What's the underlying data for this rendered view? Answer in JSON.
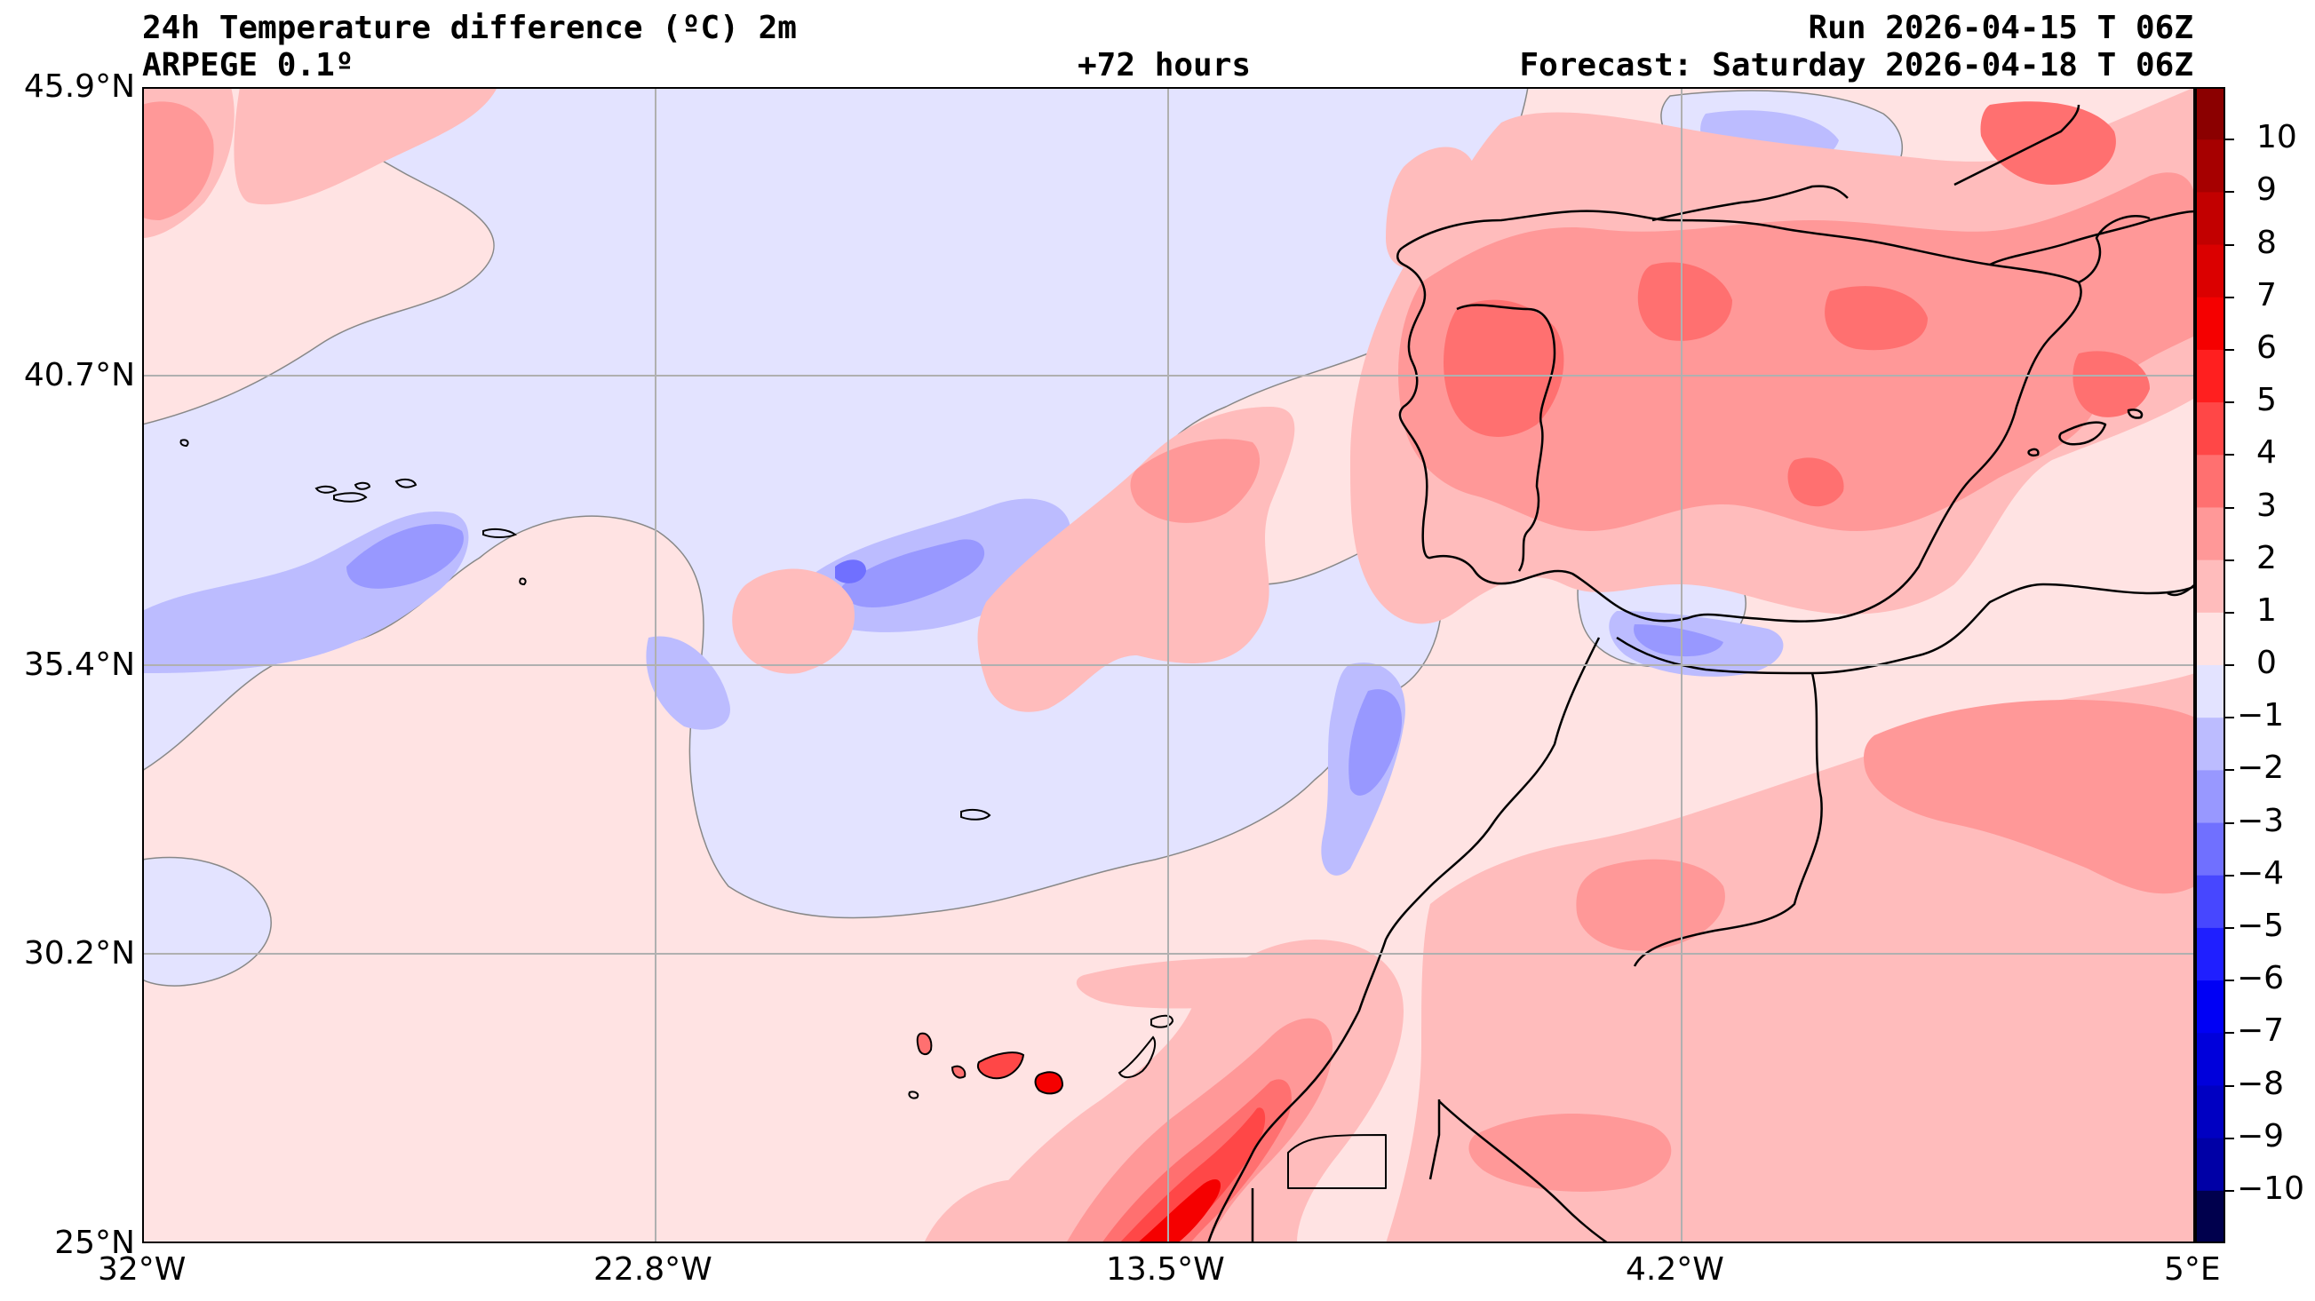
{
  "header": {
    "title": "24h Temperature difference (ºC) 2m",
    "model": "ARPEGE 0.1º",
    "lead": "+72 hours",
    "run": "Run 2026-04-15 T 06Z",
    "forecast": "Forecast: Saturday 2026-04-18 T 06Z"
  },
  "map": {
    "lat_labels": [
      "45.9°N",
      "40.7°N",
      "35.4°N",
      "30.2°N",
      "25°N"
    ],
    "lon_labels": [
      "32°W",
      "22.8°W",
      "13.5°W",
      "4.2°W",
      "5°E"
    ],
    "lat_range": [
      25,
      45.9
    ],
    "lon_range": [
      -32,
      5
    ],
    "grid": true,
    "regions": [
      "Portugal",
      "Spain",
      "France",
      "Morocco",
      "Algeria",
      "Western Sahara",
      "Canary Islands",
      "Madeira",
      "Azores",
      "Balearic Islands"
    ]
  },
  "colorbar": {
    "ticks": [
      "10",
      "9",
      "8",
      "7",
      "6",
      "5",
      "4",
      "3",
      "2",
      "1",
      "0",
      "−1",
      "−2",
      "−3",
      "−4",
      "−5",
      "−6",
      "−7",
      "−8",
      "−9",
      "−10"
    ],
    "colors_warm": [
      "#ffe3e3",
      "#ffbcbc",
      "#ff9898",
      "#ff7070",
      "#ff4747",
      "#ff1f1f",
      "#f50000",
      "#db0000",
      "#c20000",
      "#a60000",
      "#8b0000"
    ],
    "colors_cold": [
      "#e3e3ff",
      "#bcbcff",
      "#9898ff",
      "#7070ff",
      "#4747ff",
      "#1f1fff",
      "#0000f5",
      "#0000db",
      "#0000c2",
      "#0000a6",
      "#00004d"
    ]
  }
}
